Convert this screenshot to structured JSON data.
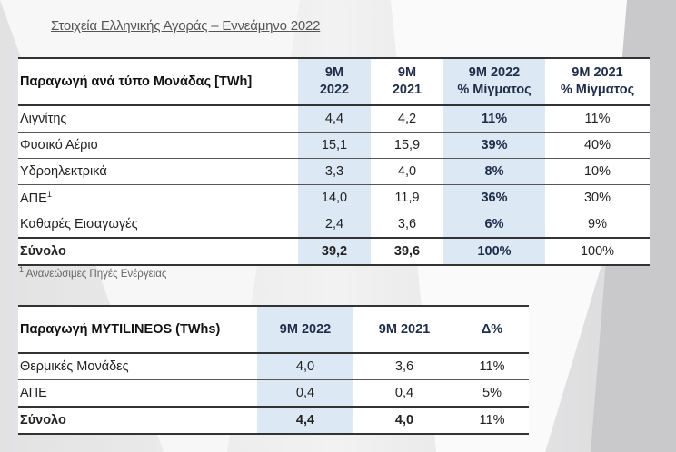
{
  "title": "Στοιχεία Ελληνικής Αγοράς – Εννεάμηνο 2022",
  "market_table": {
    "headers": [
      "Παραγωγή ανά τύπο Μονάδας [TWh]",
      "9M 2022",
      "9M 2021",
      "9M 2022 % Μίγματος",
      "9M 2021 % Μίγματος"
    ],
    "header_lines": {
      "c1a": "9M",
      "c1b": "2022",
      "c2a": "9M",
      "c2b": "2021",
      "c3a": "9M 2022",
      "c3b": "% Μίγματος",
      "c4a": "9M 2021",
      "c4b": "% Μίγματος"
    },
    "rows": [
      {
        "label": "Λιγνίτης",
        "v2022": "4,4",
        "v2021": "4,2",
        "mix2022": "11%",
        "mix2021": "11%"
      },
      {
        "label": "Φυσικό Αέριο",
        "v2022": "15,1",
        "v2021": "15,9",
        "mix2022": "39%",
        "mix2021": "40%"
      },
      {
        "label": "Υδροηλεκτρικά",
        "v2022": "3,3",
        "v2021": "4,0",
        "mix2022": "8%",
        "mix2021": "10%"
      },
      {
        "label": "ΑΠΕ",
        "sup": "1",
        "v2022": "14,0",
        "v2021": "11,9",
        "mix2022": "36%",
        "mix2021": "30%"
      },
      {
        "label": "Καθαρές Εισαγωγές",
        "v2022": "2,4",
        "v2021": "3,6",
        "mix2022": "6%",
        "mix2021": "9%"
      },
      {
        "label": "Σύνολο",
        "v2022": "39,2",
        "v2021": "39,6",
        "mix2022": "100%",
        "mix2021": "100%"
      }
    ],
    "footnote_mark": "1",
    "footnote": "Ανανεώσιμες Πηγές Ενέργειας"
  },
  "mytilineos_table": {
    "headers": [
      "Παραγωγή MYTILINEOS (TWhs)",
      "9M 2022",
      "9M 2021",
      "Δ%"
    ],
    "rows": [
      {
        "label": "Θερμικές Μονάδες",
        "v2022": "4,0",
        "v2021": "3,6",
        "delta": "11%"
      },
      {
        "label": "ΑΠΕ",
        "v2022": "0,4",
        "v2021": "0,4",
        "delta": "5%"
      },
      {
        "label": "Σύνολο",
        "v2022": "4,4",
        "v2021": "4,0",
        "delta": "11%"
      }
    ]
  },
  "colors": {
    "highlight": "#dce8f4",
    "navy": "#1f2d4a"
  }
}
